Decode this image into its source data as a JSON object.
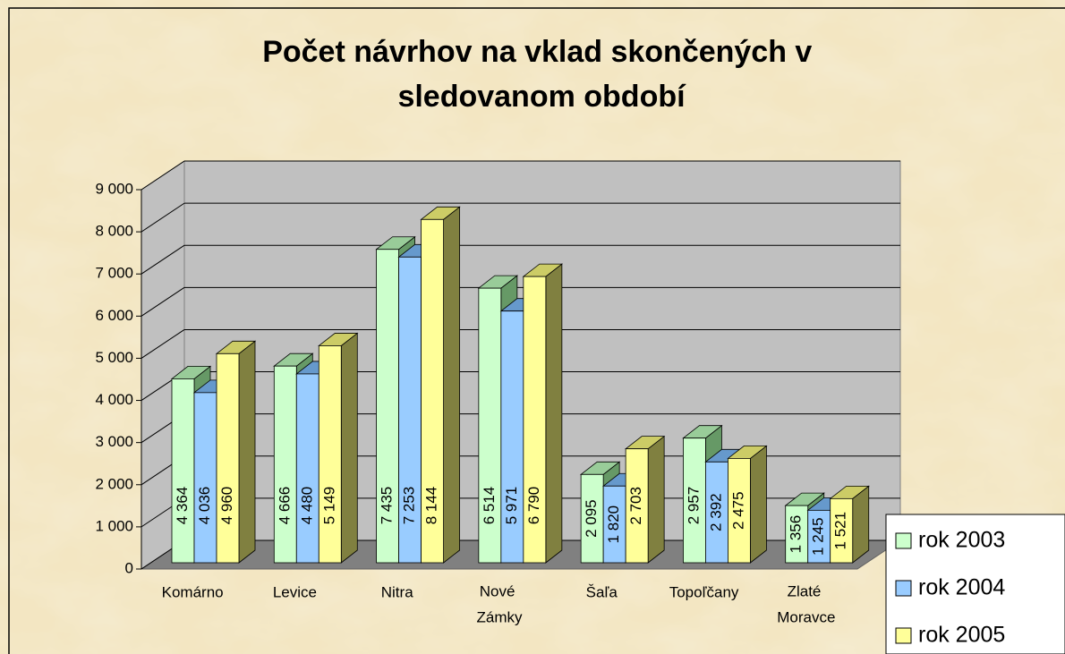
{
  "chart_data": {
    "type": "bar3d",
    "title": "Počet návrhov na vklad skončených v sledovanom období",
    "categories": [
      "Komárno",
      "Levice",
      "Nitra",
      "Nové Zámky",
      "Šaľa",
      "Topoľčany",
      "Zlaté Moravce"
    ],
    "series": [
      {
        "name": "rok 2003",
        "color": "#ccffcc",
        "values": [
          4364,
          4666,
          7435,
          6514,
          2095,
          2957,
          1356
        ],
        "value_labels": [
          "4 364",
          "4 666",
          "7 435",
          "6 514",
          "2 095",
          "2 957",
          "1 356"
        ]
      },
      {
        "name": "rok 2004",
        "color": "#99ccff",
        "values": [
          4036,
          4480,
          7253,
          5971,
          1820,
          2392,
          1245
        ],
        "value_labels": [
          "4 036",
          "4 480",
          "7 253",
          "5 971",
          "1 820",
          "2 392",
          "1 245"
        ]
      },
      {
        "name": "rok 2005",
        "color": "#ffff99",
        "values": [
          4960,
          5149,
          8144,
          6790,
          2703,
          2475,
          1521
        ],
        "value_labels": [
          "4 960",
          "5 149",
          "8 144",
          "6 790",
          "2 703",
          "2 475",
          "1 521"
        ]
      }
    ],
    "ylim": [
      0,
      9000
    ],
    "yticks": [
      0,
      {
        "value": 1000,
        "label": "1 000"
      },
      {
        "value": 2000,
        "label": "2 000"
      },
      {
        "value": 3000,
        "label": "3 000"
      },
      {
        "value": 4000,
        "label": "4 000"
      },
      {
        "value": 5000,
        "label": "5 000"
      },
      {
        "value": 6000,
        "label": "6 000"
      },
      {
        "value": 7000,
        "label": "7 000"
      },
      {
        "value": 8000,
        "label": "8 000"
      },
      {
        "value": 9000,
        "label": "9 000"
      }
    ],
    "grid": true,
    "legend": "bottom-right"
  }
}
